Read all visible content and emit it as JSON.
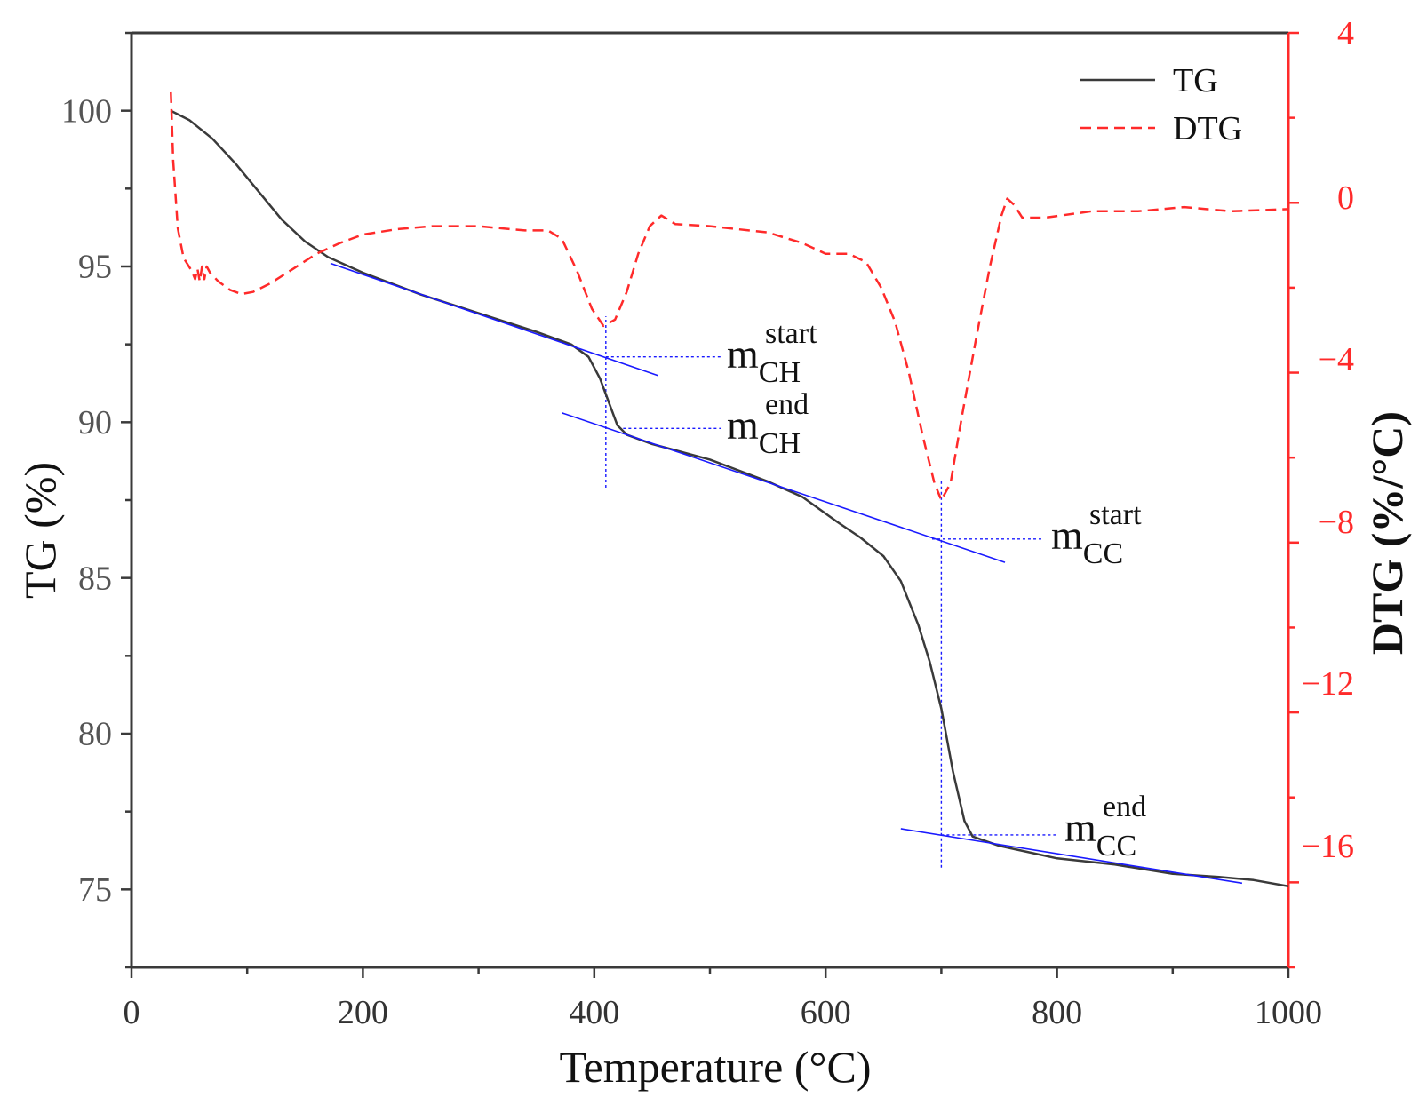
{
  "chart_data": {
    "type": "line",
    "xlabel": "Temperature (°C)",
    "ylabel_left": "TG (%)",
    "ylabel_right": "DTG (%/°C)",
    "xlim": [
      0,
      1000
    ],
    "ylim_left": [
      72.5,
      102.5
    ],
    "ylim_right": [
      -18,
      4
    ],
    "x_ticks": [
      "0",
      "200",
      "400",
      "600",
      "800",
      "1000"
    ],
    "y_left_ticks": [
      "75",
      "80",
      "85",
      "90",
      "95",
      "100"
    ],
    "y_right_ticks": [
      "4",
      "0",
      "−4",
      "−8",
      "−12",
      "−16"
    ],
    "grid": false,
    "legend_position": "top-right",
    "legend": [
      {
        "label": "TG",
        "style": "solid",
        "color": "#3a3a3a"
      },
      {
        "label": "DTG",
        "style": "dashed",
        "color": "#ff2a2a"
      }
    ],
    "colors": {
      "tg": "#3a3a3a",
      "dtg": "#ff2a2a",
      "tangent": "#1a1aff",
      "right_axis": "#ff2a2a"
    },
    "series": [
      {
        "name": "TG",
        "axis": "left",
        "style": "solid",
        "points": [
          [
            34,
            100.0
          ],
          [
            50,
            99.7
          ],
          [
            70,
            99.1
          ],
          [
            90,
            98.3
          ],
          [
            110,
            97.4
          ],
          [
            130,
            96.5
          ],
          [
            150,
            95.8
          ],
          [
            170,
            95.3
          ],
          [
            200,
            94.8
          ],
          [
            250,
            94.1
          ],
          [
            300,
            93.5
          ],
          [
            350,
            92.9
          ],
          [
            380,
            92.5
          ],
          [
            395,
            92.1
          ],
          [
            405,
            91.4
          ],
          [
            412,
            90.7
          ],
          [
            420,
            89.9
          ],
          [
            428,
            89.6
          ],
          [
            450,
            89.3
          ],
          [
            500,
            88.8
          ],
          [
            550,
            88.1
          ],
          [
            580,
            87.6
          ],
          [
            610,
            86.8
          ],
          [
            630,
            86.3
          ],
          [
            650,
            85.7
          ],
          [
            665,
            84.9
          ],
          [
            680,
            83.5
          ],
          [
            690,
            82.3
          ],
          [
            700,
            80.8
          ],
          [
            710,
            78.8
          ],
          [
            720,
            77.2
          ],
          [
            727,
            76.7
          ],
          [
            750,
            76.4
          ],
          [
            800,
            76.0
          ],
          [
            850,
            75.8
          ],
          [
            900,
            75.5
          ],
          [
            940,
            75.4
          ],
          [
            970,
            75.3
          ],
          [
            1000,
            75.1
          ]
        ]
      },
      {
        "name": "DTG",
        "axis": "right",
        "style": "dashed",
        "points": [
          [
            34,
            2.6
          ],
          [
            36,
            1.0
          ],
          [
            40,
            -0.6
          ],
          [
            45,
            -1.3
          ],
          [
            52,
            -1.6
          ],
          [
            55,
            -1.8
          ],
          [
            57,
            -1.55
          ],
          [
            59,
            -1.85
          ],
          [
            61,
            -1.5
          ],
          [
            63,
            -1.8
          ],
          [
            65,
            -1.5
          ],
          [
            68,
            -1.65
          ],
          [
            75,
            -1.85
          ],
          [
            85,
            -2.05
          ],
          [
            95,
            -2.15
          ],
          [
            105,
            -2.1
          ],
          [
            120,
            -1.9
          ],
          [
            140,
            -1.55
          ],
          [
            160,
            -1.2
          ],
          [
            180,
            -0.95
          ],
          [
            200,
            -0.75
          ],
          [
            230,
            -0.62
          ],
          [
            260,
            -0.55
          ],
          [
            300,
            -0.55
          ],
          [
            340,
            -0.65
          ],
          [
            360,
            -0.65
          ],
          [
            372,
            -0.85
          ],
          [
            385,
            -1.6
          ],
          [
            398,
            -2.5
          ],
          [
            408,
            -2.9
          ],
          [
            418,
            -2.75
          ],
          [
            428,
            -2.1
          ],
          [
            438,
            -1.2
          ],
          [
            448,
            -0.55
          ],
          [
            458,
            -0.3
          ],
          [
            470,
            -0.5
          ],
          [
            500,
            -0.55
          ],
          [
            550,
            -0.7
          ],
          [
            580,
            -0.95
          ],
          [
            600,
            -1.2
          ],
          [
            620,
            -1.2
          ],
          [
            635,
            -1.4
          ],
          [
            648,
            -2.0
          ],
          [
            660,
            -2.8
          ],
          [
            672,
            -4.0
          ],
          [
            684,
            -5.5
          ],
          [
            694,
            -6.6
          ],
          [
            700,
            -7.0
          ],
          [
            708,
            -6.6
          ],
          [
            718,
            -5.0
          ],
          [
            730,
            -3.2
          ],
          [
            742,
            -1.5
          ],
          [
            752,
            -0.3
          ],
          [
            757,
            0.1
          ],
          [
            763,
            -0.05
          ],
          [
            770,
            -0.35
          ],
          [
            790,
            -0.35
          ],
          [
            830,
            -0.2
          ],
          [
            870,
            -0.2
          ],
          [
            910,
            -0.1
          ],
          [
            950,
            -0.2
          ],
          [
            1000,
            -0.15
          ]
        ]
      }
    ],
    "tangent_lines": [
      {
        "from": [
          172,
          95.1
        ],
        "to": [
          455,
          91.5
        ]
      },
      {
        "from": [
          372,
          90.3
        ],
        "to": [
          755,
          85.5
        ]
      },
      {
        "from": [
          665,
          76.95
        ],
        "to": [
          960,
          75.2
        ]
      }
    ],
    "marker_lines": [
      {
        "x": 410,
        "y_bottom": 87.9,
        "y_top": 93.4
      },
      {
        "x": 700,
        "y_bottom": 75.7,
        "y_top": 88.1
      }
    ],
    "annotations": [
      {
        "name": "mCH-start",
        "base": "m",
        "sub": "CH",
        "sup": "start",
        "x": 410,
        "y": 92.1
      },
      {
        "name": "mCH-end",
        "base": "m",
        "sub": "CH",
        "sup": "end",
        "x": 425,
        "y": 89.8
      },
      {
        "name": "mCC-start",
        "base": "m",
        "sub": "CC",
        "sup": "start",
        "x": 692,
        "y": 86.25
      },
      {
        "name": "mCC-end",
        "base": "m",
        "sub": "CC",
        "sup": "end",
        "x": 700,
        "y": 76.75
      }
    ]
  }
}
